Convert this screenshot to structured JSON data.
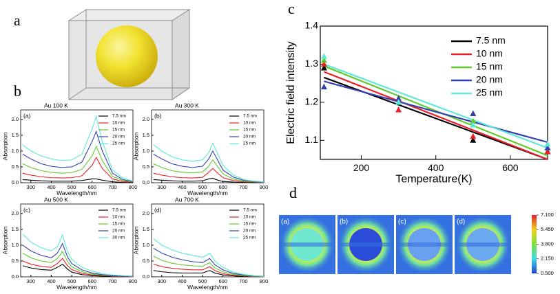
{
  "panels": [
    "a",
    "b",
    "c",
    "d"
  ],
  "chart_data": [
    {
      "type": "line",
      "panel": "(a)",
      "title": "Au 100 K",
      "xlabel": "Wavelength/nm",
      "ylabel": "Absorption",
      "x": [
        260,
        300,
        350,
        400,
        450,
        500,
        550,
        600,
        620,
        650,
        700,
        750,
        800
      ],
      "series": [
        {
          "name": "7.5 nm",
          "color": "#000000",
          "values": [
            0.1,
            0.08,
            0.06,
            0.05,
            0.05,
            0.05,
            0.07,
            0.12,
            0.12,
            0.08,
            0.03,
            0.01,
            0.0
          ]
        },
        {
          "name": "10 nm",
          "color": "#e8202a",
          "values": [
            0.3,
            0.24,
            0.19,
            0.16,
            0.15,
            0.16,
            0.22,
            0.55,
            0.8,
            0.45,
            0.12,
            0.04,
            0.02
          ]
        },
        {
          "name": "15 nm",
          "color": "#5ecb2a",
          "values": [
            0.6,
            0.48,
            0.38,
            0.33,
            0.3,
            0.32,
            0.42,
            0.85,
            1.15,
            0.7,
            0.2,
            0.07,
            0.03
          ]
        },
        {
          "name": "20 nm",
          "color": "#3340b0",
          "values": [
            0.9,
            0.75,
            0.6,
            0.52,
            0.48,
            0.5,
            0.65,
            1.3,
            1.62,
            1.0,
            0.3,
            0.1,
            0.04
          ]
        },
        {
          "name": "25 nm",
          "color": "#5fe8d8",
          "values": [
            1.2,
            1.0,
            0.85,
            0.75,
            0.7,
            0.72,
            0.9,
            1.7,
            2.1,
            1.3,
            0.4,
            0.15,
            0.05
          ]
        }
      ],
      "xlim": [
        250,
        800
      ],
      "ylim": [
        0,
        2.3
      ],
      "xticks": [
        300,
        400,
        500,
        600,
        700,
        800
      ],
      "yticks": [
        {
          "value": 0,
          "label": "0.0"
        },
        0.5,
        {
          "value": 1,
          "label": "1.0"
        },
        1.5,
        {
          "value": 2,
          "label": "2.0"
        }
      ]
    },
    {
      "type": "line",
      "panel": "(b)",
      "title": "Au 300 K",
      "xlabel": "Wavelength/nm",
      "ylabel": "Absorption",
      "x": [
        260,
        300,
        350,
        400,
        450,
        500,
        530,
        550,
        575,
        600,
        650,
        700,
        750,
        800
      ],
      "series": [
        {
          "name": "7.5 nm",
          "color": "#000000",
          "values": [
            0.1,
            0.08,
            0.06,
            0.05,
            0.05,
            0.06,
            0.12,
            0.14,
            0.08,
            0.04,
            0.02,
            0.01,
            0.0,
            0.0
          ]
        },
        {
          "name": "10 nm",
          "color": "#e8202a",
          "values": [
            0.3,
            0.24,
            0.19,
            0.16,
            0.15,
            0.17,
            0.33,
            0.45,
            0.3,
            0.16,
            0.07,
            0.03,
            0.02,
            0.01
          ]
        },
        {
          "name": "15 nm",
          "color": "#5ecb2a",
          "values": [
            0.6,
            0.48,
            0.38,
            0.33,
            0.31,
            0.34,
            0.52,
            0.72,
            0.5,
            0.28,
            0.12,
            0.05,
            0.03,
            0.01
          ]
        },
        {
          "name": "20 nm",
          "color": "#3340b0",
          "values": [
            0.9,
            0.75,
            0.6,
            0.52,
            0.48,
            0.52,
            0.75,
            1.0,
            0.7,
            0.4,
            0.18,
            0.08,
            0.04,
            0.02
          ]
        },
        {
          "name": "25 nm",
          "color": "#5fe8d8",
          "values": [
            1.2,
            1.0,
            0.82,
            0.72,
            0.68,
            0.72,
            0.95,
            1.25,
            0.9,
            0.55,
            0.25,
            0.1,
            0.05,
            0.03
          ]
        }
      ],
      "xlim": [
        250,
        800
      ],
      "ylim": [
        0,
        2.3
      ],
      "xticks": [
        300,
        400,
        500,
        600,
        700,
        800
      ],
      "yticks": [
        {
          "value": 0,
          "label": "0.0"
        },
        0.5,
        {
          "value": 1,
          "label": "1.0"
        },
        1.5,
        {
          "value": 2,
          "label": "2.0"
        }
      ]
    },
    {
      "type": "line",
      "panel": "(c)",
      "title": "Au 500 K",
      "xlabel": "Wavelength/nm",
      "ylabel": "Absorption",
      "x": [
        260,
        300,
        350,
        400,
        430,
        455,
        480,
        500,
        550,
        600,
        650,
        700,
        750,
        800
      ],
      "series": [
        {
          "name": "7.5 nm",
          "color": "#000000",
          "values": [
            0.35,
            0.28,
            0.23,
            0.21,
            0.3,
            0.4,
            0.24,
            0.15,
            0.07,
            0.04,
            0.02,
            0.01,
            0.0,
            0.0
          ]
        },
        {
          "name": "10 nm",
          "color": "#e8202a",
          "values": [
            0.5,
            0.4,
            0.33,
            0.3,
            0.42,
            0.58,
            0.35,
            0.23,
            0.11,
            0.06,
            0.04,
            0.02,
            0.01,
            0.0
          ]
        },
        {
          "name": "15 nm",
          "color": "#5ecb2a",
          "values": [
            0.75,
            0.6,
            0.5,
            0.45,
            0.58,
            0.8,
            0.48,
            0.32,
            0.16,
            0.09,
            0.05,
            0.03,
            0.02,
            0.01
          ]
        },
        {
          "name": "20 nm",
          "color": "#3340b0",
          "values": [
            1.0,
            0.82,
            0.68,
            0.6,
            0.75,
            1.05,
            0.62,
            0.42,
            0.22,
            0.12,
            0.07,
            0.04,
            0.02,
            0.01
          ]
        },
        {
          "name": "30 nm",
          "color": "#5fe8d8",
          "values": [
            1.35,
            1.1,
            0.92,
            0.82,
            0.95,
            1.32,
            0.8,
            0.55,
            0.3,
            0.18,
            0.1,
            0.06,
            0.04,
            0.02
          ]
        }
      ],
      "xlim": [
        250,
        800
      ],
      "ylim": [
        0,
        2.3
      ],
      "xticks": [
        300,
        400,
        500,
        600,
        700,
        800
      ],
      "yticks": [
        {
          "value": 0,
          "label": "0.0"
        },
        0.5,
        {
          "value": 1,
          "label": "1.0"
        },
        1.5,
        {
          "value": 2,
          "label": "2.0"
        }
      ]
    },
    {
      "type": "line",
      "panel": "(d)",
      "title": "Au 700 K",
      "xlabel": "Wavelength/nm",
      "ylabel": "Absorption",
      "x": [
        260,
        300,
        350,
        400,
        450,
        500,
        520,
        535,
        560,
        600,
        650,
        700,
        750,
        800
      ],
      "series": [
        {
          "name": "7.5 nm",
          "color": "#000000",
          "values": [
            0.2,
            0.16,
            0.13,
            0.12,
            0.12,
            0.12,
            0.17,
            0.2,
            0.12,
            0.06,
            0.03,
            0.01,
            0.0,
            0.0
          ]
        },
        {
          "name": "10 nm",
          "color": "#e8202a",
          "values": [
            0.4,
            0.32,
            0.27,
            0.24,
            0.22,
            0.22,
            0.28,
            0.32,
            0.2,
            0.1,
            0.05,
            0.03,
            0.01,
            0.01
          ]
        },
        {
          "name": "15 nm",
          "color": "#5ecb2a",
          "values": [
            0.65,
            0.52,
            0.43,
            0.38,
            0.35,
            0.33,
            0.4,
            0.45,
            0.28,
            0.16,
            0.08,
            0.04,
            0.02,
            0.01
          ]
        },
        {
          "name": "20 nm",
          "color": "#3340b0",
          "values": [
            0.9,
            0.75,
            0.62,
            0.54,
            0.48,
            0.45,
            0.52,
            0.58,
            0.38,
            0.22,
            0.11,
            0.06,
            0.03,
            0.02
          ]
        },
        {
          "name": "25 nm",
          "color": "#5fe8d8",
          "values": [
            1.2,
            1.0,
            0.85,
            0.75,
            0.68,
            0.62,
            0.68,
            0.75,
            0.5,
            0.3,
            0.15,
            0.08,
            0.04,
            0.02
          ]
        }
      ],
      "xlim": [
        250,
        800
      ],
      "ylim": [
        0,
        2.3
      ],
      "xticks": [
        300,
        400,
        500,
        600,
        700,
        800
      ],
      "yticks": [
        {
          "value": 0,
          "label": "0.0"
        },
        0.5,
        {
          "value": 1,
          "label": "1.0"
        },
        1.5,
        {
          "value": 2,
          "label": "2.0"
        }
      ]
    },
    {
      "type": "scatter",
      "xlabel": "Temperature(K)",
      "ylabel": "Electric field intensity",
      "x": [
        100,
        300,
        500,
        700
      ],
      "fit_x": [
        100,
        700
      ],
      "series": [
        {
          "name": "7.5 nm",
          "color": "#000000",
          "values": [
            1.29,
            1.2,
            1.1,
            1.07
          ],
          "fit": [
            1.265,
            1.05
          ]
        },
        {
          "name": "10 nm",
          "color": "#e8202a",
          "values": [
            1.3,
            1.18,
            1.11,
            1.07
          ],
          "fit": [
            1.28,
            1.05
          ]
        },
        {
          "name": "15 nm",
          "color": "#5ecb2a",
          "values": [
            1.31,
            1.2,
            1.15,
            1.08
          ],
          "fit": [
            1.295,
            1.06
          ]
        },
        {
          "name": "20 nm",
          "color": "#3340b0",
          "values": [
            1.24,
            1.21,
            1.17,
            1.08
          ],
          "fit": [
            1.255,
            1.095
          ]
        },
        {
          "name": "25 nm",
          "color": "#5fe8d8",
          "values": [
            1.32,
            1.2,
            1.14,
            1.09
          ],
          "fit": [
            1.3,
            1.08
          ]
        }
      ],
      "xlim": [
        90,
        700
      ],
      "ylim": [
        1.05,
        1.4
      ],
      "xticks": [
        200,
        400,
        600
      ],
      "yticks": [
        1.1,
        1.2,
        1.3,
        1.4
      ]
    },
    {
      "type": "heatmap",
      "subplots": [
        "(a)",
        "(b)",
        "(c)",
        "(d)"
      ],
      "clim": [
        0.5,
        7.1
      ],
      "colorbar_ticks": [
        {
          "value": 7.1,
          "label": "7.100"
        },
        {
          "value": 5.45,
          "label": "5.450"
        },
        {
          "value": 3.8,
          "label": "3.800"
        },
        {
          "value": 2.15,
          "label": "2.150"
        },
        {
          "value": 0.5,
          "label": "0.500"
        }
      ]
    }
  ]
}
